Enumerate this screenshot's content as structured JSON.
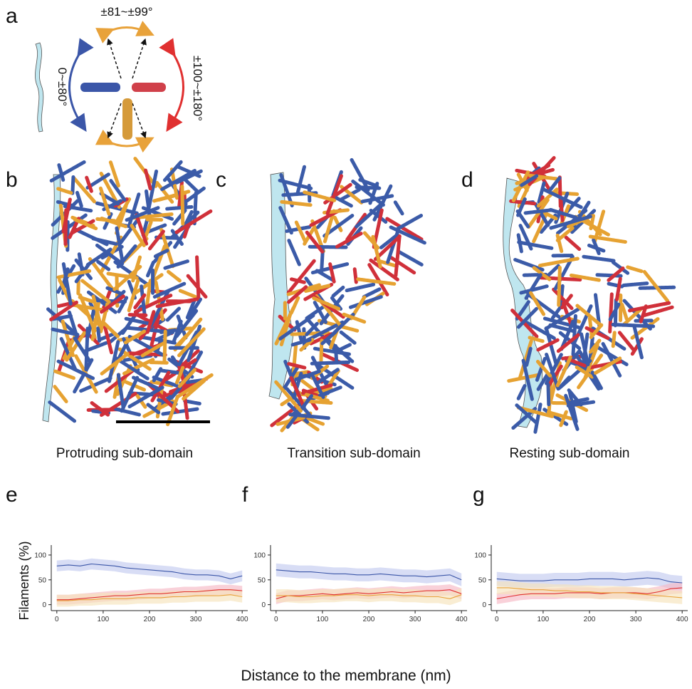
{
  "panel_labels": [
    "a",
    "b",
    "c",
    "d",
    "e",
    "f",
    "g"
  ],
  "angle_labels": [
    "±81~±99°",
    "0~±80°",
    "±100~±180°"
  ],
  "captions": [
    "Protruding sub-domain",
    "Transition sub-domain",
    "Resting sub-domain"
  ],
  "shared_axes": {
    "ylabel": "Filaments (%)",
    "xlabel": "Distance to the membrane (nm)"
  },
  "chart_data": [
    {
      "type": "line",
      "x": [
        0,
        25,
        50,
        75,
        100,
        125,
        150,
        175,
        200,
        225,
        250,
        275,
        300,
        325,
        350,
        375,
        400
      ],
      "xlim": [
        -12,
        412
      ],
      "xticks": [
        0,
        100,
        200,
        300,
        400
      ],
      "ylim": [
        -12,
        120
      ],
      "yticks": [
        0,
        50,
        100
      ],
      "series": [
        {
          "color": "#3b56a8",
          "band_color": "#c3cbef",
          "error": 11,
          "values": [
            78,
            80,
            78,
            82,
            80,
            78,
            74,
            72,
            70,
            68,
            66,
            62,
            60,
            60,
            58,
            52,
            58
          ]
        },
        {
          "color": "#e03030",
          "band_color": "#f6b8c4",
          "error": 10,
          "values": [
            10,
            10,
            12,
            14,
            16,
            18,
            18,
            20,
            22,
            22,
            24,
            26,
            26,
            28,
            30,
            30,
            28
          ]
        },
        {
          "color": "#e8a23a",
          "band_color": "#f6e4bc",
          "error": 12,
          "values": [
            8,
            8,
            10,
            10,
            12,
            12,
            12,
            14,
            14,
            14,
            16,
            16,
            18,
            18,
            18,
            20,
            16
          ]
        }
      ]
    },
    {
      "type": "line",
      "x": [
        0,
        25,
        50,
        75,
        100,
        125,
        150,
        175,
        200,
        225,
        250,
        275,
        300,
        325,
        350,
        375,
        400
      ],
      "xlim": [
        -12,
        412
      ],
      "xticks": [
        0,
        100,
        200,
        300,
        400
      ],
      "ylim": [
        -12,
        120
      ],
      "yticks": [
        0,
        50,
        100
      ],
      "series": [
        {
          "color": "#3b56a8",
          "band_color": "#c3cbef",
          "error": 13,
          "values": [
            70,
            68,
            66,
            66,
            64,
            62,
            62,
            60,
            60,
            62,
            60,
            58,
            58,
            56,
            58,
            60,
            50
          ]
        },
        {
          "color": "#e03030",
          "band_color": "#f6b8c4",
          "error": 11,
          "values": [
            12,
            18,
            18,
            20,
            22,
            20,
            22,
            24,
            22,
            24,
            26,
            24,
            26,
            28,
            28,
            30,
            22
          ]
        },
        {
          "color": "#e8a23a",
          "band_color": "#f6e4bc",
          "error": 13,
          "values": [
            18,
            18,
            16,
            16,
            18,
            18,
            20,
            20,
            18,
            20,
            20,
            18,
            18,
            16,
            16,
            12,
            20
          ]
        }
      ]
    },
    {
      "type": "line",
      "x": [
        0,
        25,
        50,
        75,
        100,
        125,
        150,
        175,
        200,
        225,
        250,
        275,
        300,
        325,
        350,
        375,
        400
      ],
      "xlim": [
        -12,
        412
      ],
      "xticks": [
        0,
        100,
        200,
        300,
        400
      ],
      "ylim": [
        -12,
        120
      ],
      "yticks": [
        0,
        50,
        100
      ],
      "series": [
        {
          "color": "#3b56a8",
          "band_color": "#c3cbef",
          "error": 14,
          "values": [
            52,
            50,
            48,
            48,
            48,
            50,
            50,
            50,
            52,
            52,
            52,
            50,
            52,
            54,
            52,
            46,
            44
          ]
        },
        {
          "color": "#e03030",
          "band_color": "#f6b8c4",
          "error": 11,
          "values": [
            12,
            16,
            20,
            22,
            22,
            22,
            24,
            24,
            24,
            22,
            24,
            24,
            24,
            22,
            26,
            32,
            34
          ]
        },
        {
          "color": "#e8a23a",
          "band_color": "#f6e4bc",
          "error": 13,
          "values": [
            34,
            34,
            32,
            30,
            30,
            28,
            28,
            26,
            26,
            24,
            24,
            24,
            22,
            20,
            18,
            16,
            14
          ]
        }
      ]
    }
  ]
}
